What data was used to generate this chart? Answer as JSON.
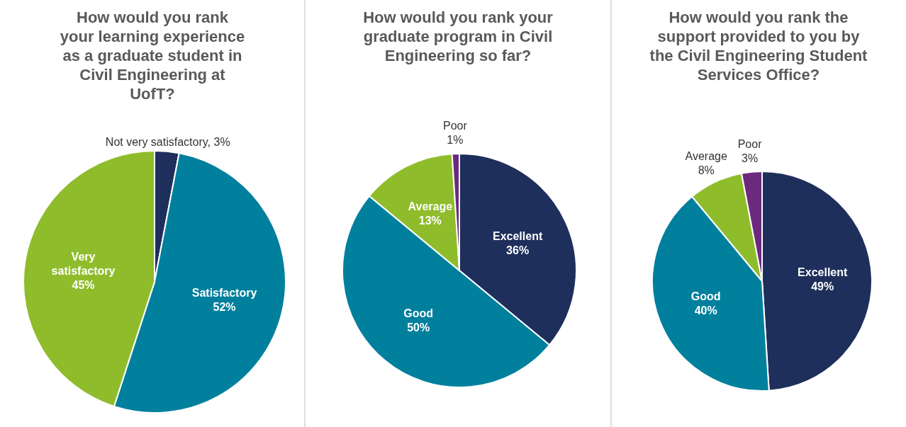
{
  "chart_data": [
    {
      "type": "pie",
      "title": "How would you rank your learning experience as a graduate student in Civil Engineering at UofT?",
      "categories": [
        "Not very satisfactory",
        "Satisfactory",
        "Very satisfactory"
      ],
      "values": [
        3,
        52,
        45
      ],
      "colors": [
        "#1f2f5c",
        "#00809d",
        "#8fbc2b"
      ],
      "value_labels": [
        "3%",
        "52%",
        "45%"
      ]
    },
    {
      "type": "pie",
      "title": "How would you rank your graduate program in Civil Engineering so far?",
      "categories": [
        "Excellent",
        "Good",
        "Average",
        "Poor"
      ],
      "values": [
        36,
        50,
        13,
        1
      ],
      "colors": [
        "#1f2f5c",
        "#00809d",
        "#8fbc2b",
        "#6b2a7d"
      ],
      "value_labels": [
        "36%",
        "50%",
        "13%",
        "1%"
      ]
    },
    {
      "type": "pie",
      "title": "How would you rank the support provided to you by the Civil Engineering Student Services Office?",
      "categories": [
        "Excellent",
        "Good",
        "Average",
        "Poor"
      ],
      "values": [
        49,
        40,
        8,
        3
      ],
      "colors": [
        "#1f2f5c",
        "#00809d",
        "#8fbc2b",
        "#6b2a7d"
      ],
      "value_labels": [
        "49%",
        "40%",
        "8%",
        "3%"
      ]
    }
  ]
}
